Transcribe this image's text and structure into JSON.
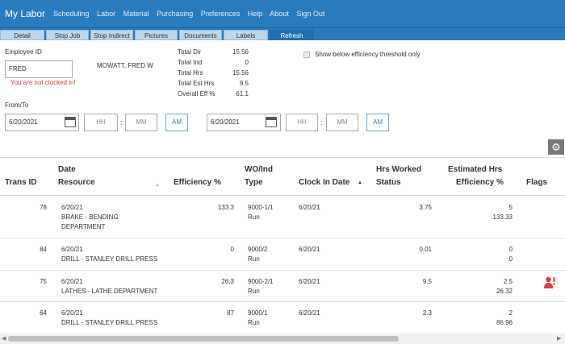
{
  "app": {
    "title": "My Labor",
    "nav": [
      "Scheduling",
      "Labor",
      "Material",
      "Purchasing",
      "Preferences",
      "Help",
      "About",
      "Sign Out"
    ]
  },
  "toolbar": {
    "tabs": [
      "Detail",
      "Stop Job",
      "Stop Indirect",
      "Pictures",
      "Documents",
      "Labels",
      "Refresh"
    ],
    "active_tab": "Refresh"
  },
  "employee": {
    "label": "Employee ID",
    "id_value": "FRED",
    "name": "MOWATT, FRED W",
    "status_message": "You are not clocked in!"
  },
  "totals": [
    {
      "label": "Total Dir",
      "value": "15.56"
    },
    {
      "label": "Total Ind",
      "value": "0"
    },
    {
      "label": "Total Hrs",
      "value": "15.56"
    },
    {
      "label": "Total Est Hrs",
      "value": "9.5"
    },
    {
      "label": "Overall Eff %",
      "value": "61.1"
    }
  ],
  "filter": {
    "efficiency_checkbox_label": "Show below efficiency threshold only",
    "from_to_label": "From/To",
    "from": {
      "date": "6/20/2021",
      "hh_placeholder": "HH",
      "mm_placeholder": "MM",
      "ampm": "AM"
    },
    "to": {
      "date": "6/20/2021",
      "hh_placeholder": "HH",
      "mm_placeholder": "MM",
      "ampm": "AM"
    }
  },
  "colors": {
    "topbar": "#2a7bbd",
    "error": "#e53935",
    "flag": "#e53935"
  },
  "table": {
    "headers": {
      "trans_id": "Trans ID",
      "date": "Date",
      "resource": "Resource",
      "efficiency": "Efficiency %",
      "wo_ind": "WO/Ind",
      "type": "Type",
      "clock_in_date": "Clock In Date",
      "hrs_worked": "Hrs Worked",
      "status": "Status",
      "estimated_hrs": "Estimated Hrs",
      "efficiency2": "Efficiency %",
      "flags": "Flags"
    },
    "rows": [
      {
        "trans_id": "78",
        "date": "6/20/21",
        "resource": "BRAKE - BENDING",
        "resource2": "DEPARTMENT",
        "efficiency": "133.3",
        "wo": "9000-1/1",
        "type": "Run",
        "clock_in": "6/20/21",
        "hrs_worked": "3.75",
        "est_hrs": "5",
        "est_eff": "133.33",
        "flag": ""
      },
      {
        "trans_id": "84",
        "date": "6/20/21",
        "resource": "DRILL - STANLEY DRILL PRESS",
        "resource2": "",
        "efficiency": "0",
        "wo": "9000/2",
        "type": "Run",
        "clock_in": "6/20/21",
        "hrs_worked": "0.01",
        "est_hrs": "0",
        "est_eff": "0",
        "flag": ""
      },
      {
        "trans_id": "75",
        "date": "6/20/21",
        "resource": "LATHES - LATHE DEPARTMENT",
        "resource2": "",
        "efficiency": "26.3",
        "wo": "9000-2/1",
        "type": "Run",
        "clock_in": "6/20/21",
        "hrs_worked": "9.5",
        "est_hrs": "2.5",
        "est_eff": "26.32",
        "flag": "user-alert-icon"
      },
      {
        "trans_id": "64",
        "date": "6/20/21",
        "resource": "DRILL - STANLEY DRILL PRESS",
        "resource2": "",
        "efficiency": "87",
        "wo": "9000/1",
        "type": "Run",
        "clock_in": "6/20/21",
        "hrs_worked": "2.3",
        "est_hrs": "2",
        "est_eff": "86.96",
        "flag": ""
      }
    ]
  }
}
